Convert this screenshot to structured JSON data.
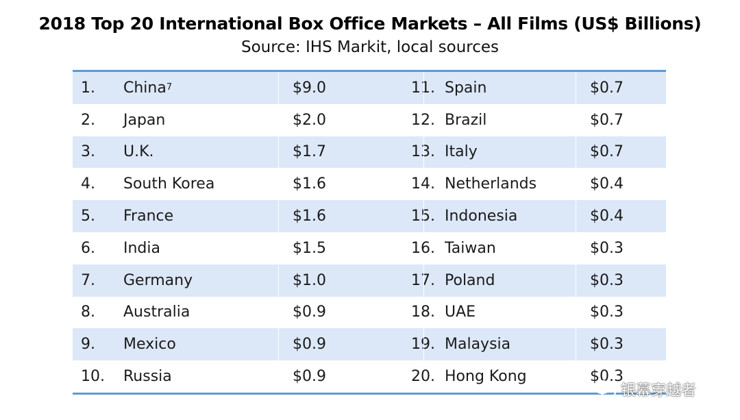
{
  "title": "2018 Top 20 International Box Office Markets – All Films (US$ Billions)",
  "subtitle": "Source: IHS Markit, local sources",
  "colors": {
    "rule": "#5b9bd5",
    "shade": "#dce8f8"
  },
  "chart_data": {
    "type": "table",
    "title": "2018 Top 20 International Box Office Markets – All Films (US$ Billions)",
    "subtitle": "Source: IHS Markit, local sources",
    "rows": [
      {
        "rank": "1.",
        "country": "China",
        "footnote": "7",
        "value": "$9.0"
      },
      {
        "rank": "2.",
        "country": "Japan",
        "value": "$2.0"
      },
      {
        "rank": "3.",
        "country": "U.K.",
        "value": "$1.7"
      },
      {
        "rank": "4.",
        "country": "South Korea",
        "value": "$1.6"
      },
      {
        "rank": "5.",
        "country": "France",
        "value": "$1.6"
      },
      {
        "rank": "6.",
        "country": "India",
        "value": "$1.5"
      },
      {
        "rank": "7.",
        "country": "Germany",
        "value": "$1.0"
      },
      {
        "rank": "8.",
        "country": "Australia",
        "value": "$0.9"
      },
      {
        "rank": "9.",
        "country": "Mexico",
        "value": "$0.9"
      },
      {
        "rank": "10.",
        "country": "Russia",
        "value": "$0.9"
      },
      {
        "rank": "11.",
        "country": "Spain",
        "value": "$0.7"
      },
      {
        "rank": "12.",
        "country": "Brazil",
        "value": "$0.7"
      },
      {
        "rank": "13.",
        "country": "Italy",
        "value": "$0.7"
      },
      {
        "rank": "14.",
        "country": "Netherlands",
        "value": "$0.4"
      },
      {
        "rank": "15.",
        "country": "Indonesia",
        "value": "$0.4"
      },
      {
        "rank": "16.",
        "country": "Taiwan",
        "value": "$0.3"
      },
      {
        "rank": "17.",
        "country": "Poland",
        "value": "$0.3"
      },
      {
        "rank": "18.",
        "country": "UAE",
        "value": "$0.3"
      },
      {
        "rank": "19.",
        "country": "Malaysia",
        "value": "$0.3"
      },
      {
        "rank": "20.",
        "country": "Hong Kong",
        "value": "$0.3"
      }
    ]
  },
  "watermark": {
    "text": "银幕穿越者",
    "icon": "wechat-icon"
  }
}
